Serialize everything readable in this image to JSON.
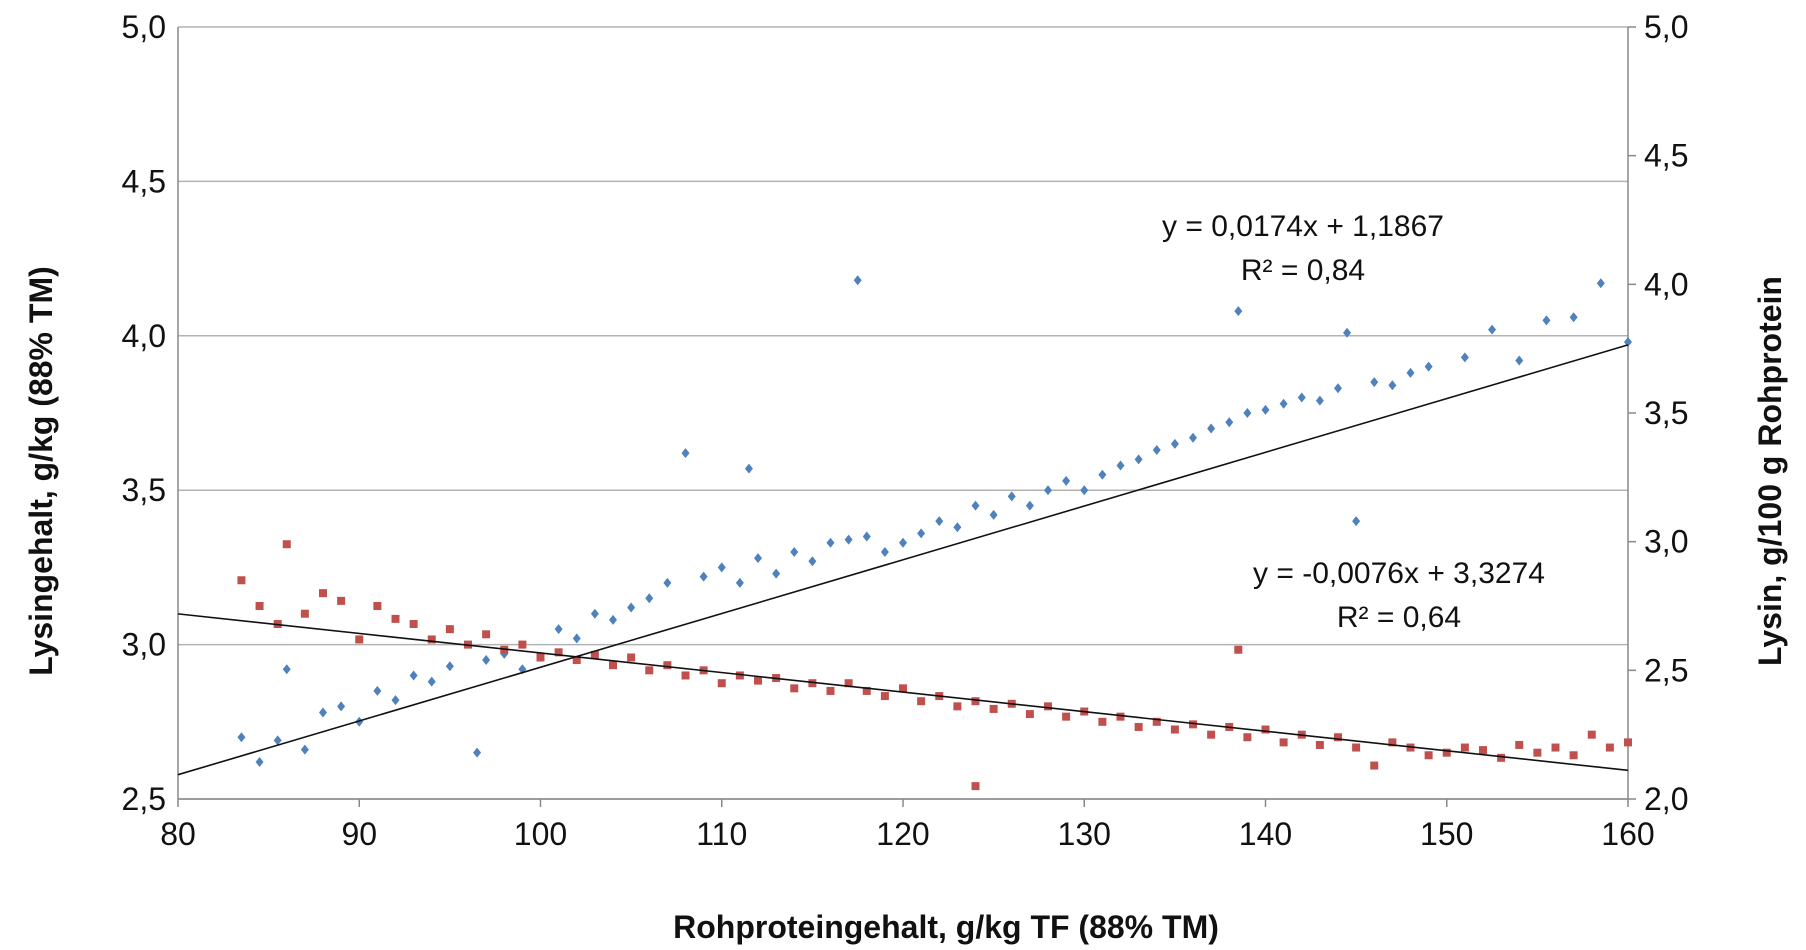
{
  "chart_data": {
    "type": "scatter",
    "xlabel": "Rohproteingehalt, g/kg TF (88% TM)",
    "ylabel": "Lysingehalt, g/kg (88% TM)",
    "y2label": "Lysin, g/100 g Rohprotein",
    "xlim": [
      80,
      160
    ],
    "ylim": [
      2.5,
      5.0
    ],
    "y2lim": [
      2.0,
      5.0
    ],
    "x_ticks": [
      "80",
      "90",
      "100",
      "110",
      "120",
      "130",
      "140",
      "150",
      "160"
    ],
    "y_ticks": [
      "2,5",
      "3,0",
      "3,5",
      "4,0",
      "4,5",
      "5,0"
    ],
    "y2_ticks": [
      "2,0",
      "2,5",
      "3,0",
      "3,5",
      "4,0",
      "4,5",
      "5,0"
    ],
    "grid": "horizontal",
    "series": [
      {
        "axis": "left",
        "color": "#4f81bd",
        "marker": "diamond",
        "points": [
          [
            83.5,
            2.7
          ],
          [
            84.5,
            2.62
          ],
          [
            85.5,
            2.69
          ],
          [
            86,
            2.92
          ],
          [
            87,
            2.66
          ],
          [
            88,
            2.78
          ],
          [
            89,
            2.8
          ],
          [
            90,
            2.75
          ],
          [
            91,
            2.85
          ],
          [
            92,
            2.82
          ],
          [
            93,
            2.9
          ],
          [
            94,
            2.88
          ],
          [
            95,
            2.93
          ],
          [
            96.5,
            2.65
          ],
          [
            97,
            2.95
          ],
          [
            98,
            2.97
          ],
          [
            99,
            2.92
          ],
          [
            100,
            2.96
          ],
          [
            101,
            3.05
          ],
          [
            102,
            3.02
          ],
          [
            103,
            3.1
          ],
          [
            104,
            3.08
          ],
          [
            105,
            3.12
          ],
          [
            106,
            3.15
          ],
          [
            107,
            3.2
          ],
          [
            108,
            3.62
          ],
          [
            109,
            3.22
          ],
          [
            110,
            3.25
          ],
          [
            111,
            3.2
          ],
          [
            111.5,
            3.57
          ],
          [
            112,
            3.28
          ],
          [
            113,
            3.23
          ],
          [
            114,
            3.3
          ],
          [
            115,
            3.27
          ],
          [
            116,
            3.33
          ],
          [
            117,
            3.34
          ],
          [
            117.5,
            4.18
          ],
          [
            118,
            3.35
          ],
          [
            119,
            3.3
          ],
          [
            120,
            3.33
          ],
          [
            121,
            3.36
          ],
          [
            122,
            3.4
          ],
          [
            123,
            3.38
          ],
          [
            124,
            3.45
          ],
          [
            125,
            3.42
          ],
          [
            126,
            3.48
          ],
          [
            127,
            3.45
          ],
          [
            128,
            3.5
          ],
          [
            129,
            3.53
          ],
          [
            130,
            3.5
          ],
          [
            131,
            3.55
          ],
          [
            132,
            3.58
          ],
          [
            133,
            3.6
          ],
          [
            134,
            3.63
          ],
          [
            135,
            3.65
          ],
          [
            136,
            3.67
          ],
          [
            137,
            3.7
          ],
          [
            138,
            3.72
          ],
          [
            138.5,
            4.08
          ],
          [
            139,
            3.75
          ],
          [
            140,
            3.76
          ],
          [
            141,
            3.78
          ],
          [
            142,
            3.8
          ],
          [
            143,
            3.79
          ],
          [
            144,
            3.83
          ],
          [
            144.5,
            4.01
          ],
          [
            145,
            3.4
          ],
          [
            146,
            3.85
          ],
          [
            147,
            3.84
          ],
          [
            148,
            3.88
          ],
          [
            149,
            3.9
          ],
          [
            151,
            3.93
          ],
          [
            152.5,
            4.02
          ],
          [
            154,
            3.92
          ],
          [
            155.5,
            4.05
          ],
          [
            157,
            4.06
          ],
          [
            158.5,
            4.17
          ],
          [
            160,
            3.98
          ]
        ]
      },
      {
        "axis": "right",
        "color": "#c0504d",
        "marker": "square",
        "points": [
          [
            83.5,
            2.85
          ],
          [
            84.5,
            2.75
          ],
          [
            85.5,
            2.68
          ],
          [
            86,
            2.99
          ],
          [
            87,
            2.72
          ],
          [
            88,
            2.8
          ],
          [
            89,
            2.77
          ],
          [
            90,
            2.62
          ],
          [
            91,
            2.75
          ],
          [
            92,
            2.7
          ],
          [
            93,
            2.68
          ],
          [
            94,
            2.62
          ],
          [
            95,
            2.66
          ],
          [
            96,
            2.6
          ],
          [
            97,
            2.64
          ],
          [
            98,
            2.58
          ],
          [
            99,
            2.6
          ],
          [
            100,
            2.55
          ],
          [
            101,
            2.57
          ],
          [
            102,
            2.54
          ],
          [
            103,
            2.56
          ],
          [
            104,
            2.52
          ],
          [
            105,
            2.55
          ],
          [
            106,
            2.5
          ],
          [
            107,
            2.52
          ],
          [
            108,
            2.48
          ],
          [
            109,
            2.5
          ],
          [
            110,
            2.45
          ],
          [
            111,
            2.48
          ],
          [
            112,
            2.46
          ],
          [
            113,
            2.47
          ],
          [
            114,
            2.43
          ],
          [
            115,
            2.45
          ],
          [
            116,
            2.42
          ],
          [
            117,
            2.45
          ],
          [
            118,
            2.42
          ],
          [
            119,
            2.4
          ],
          [
            120,
            2.43
          ],
          [
            121,
            2.38
          ],
          [
            122,
            2.4
          ],
          [
            123,
            2.36
          ],
          [
            124,
            2.05
          ],
          [
            124,
            2.38
          ],
          [
            125,
            2.35
          ],
          [
            126,
            2.37
          ],
          [
            127,
            2.33
          ],
          [
            128,
            2.36
          ],
          [
            129,
            2.32
          ],
          [
            130,
            2.34
          ],
          [
            131,
            2.3
          ],
          [
            132,
            2.32
          ],
          [
            133,
            2.28
          ],
          [
            134,
            2.3
          ],
          [
            135,
            2.27
          ],
          [
            136,
            2.29
          ],
          [
            137,
            2.25
          ],
          [
            138,
            2.28
          ],
          [
            138.5,
            2.58
          ],
          [
            139,
            2.24
          ],
          [
            140,
            2.27
          ],
          [
            141,
            2.22
          ],
          [
            142,
            2.25
          ],
          [
            143,
            2.21
          ],
          [
            144,
            2.24
          ],
          [
            145,
            2.2
          ],
          [
            146,
            2.13
          ],
          [
            147,
            2.22
          ],
          [
            148,
            2.2
          ],
          [
            149,
            2.17
          ],
          [
            150,
            2.18
          ],
          [
            151,
            2.2
          ],
          [
            152,
            2.19
          ],
          [
            153,
            2.16
          ],
          [
            154,
            2.21
          ],
          [
            155,
            2.18
          ],
          [
            156,
            2.2
          ],
          [
            157,
            2.17
          ],
          [
            158,
            2.25
          ],
          [
            159,
            2.2
          ],
          [
            160,
            2.22
          ]
        ]
      }
    ],
    "trendlines": [
      {
        "axis": "left",
        "slope": 0.0174,
        "intercept": 1.1867,
        "equation": "y = 0,0174x + 1,1867",
        "r2": "R² = 0,84"
      },
      {
        "axis": "right",
        "slope": -0.0076,
        "intercept": 3.3274,
        "equation": "y = -0,0076x + 3,3274",
        "r2": "R² = 0,64"
      }
    ]
  }
}
